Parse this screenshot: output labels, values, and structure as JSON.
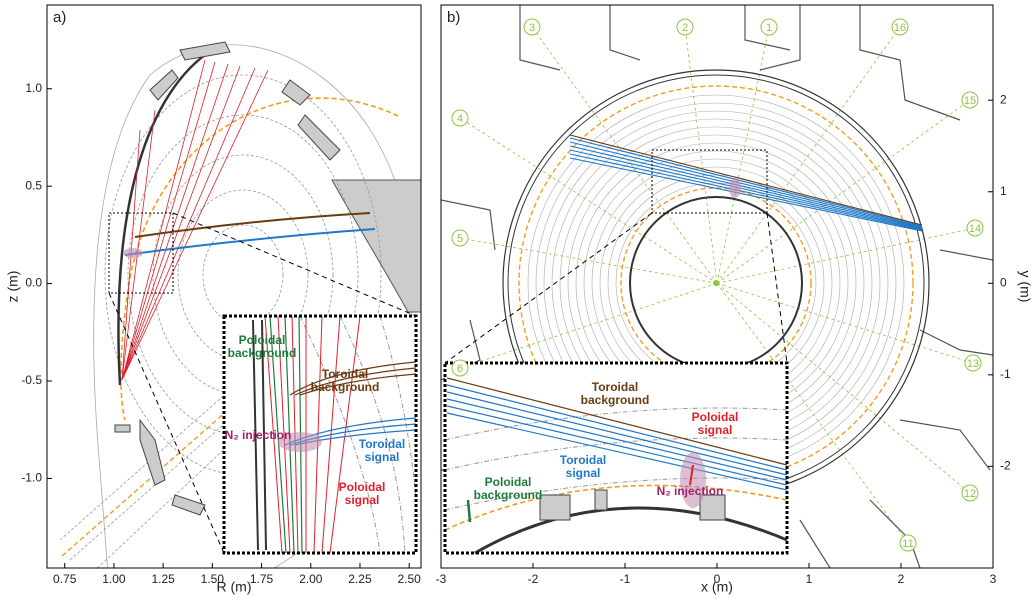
{
  "chart_data": [
    {
      "type": "line",
      "panel_label": "a)",
      "xlabel": "R (m)",
      "ylabel": "z (m)",
      "xlim": [
        0.66,
        2.56
      ],
      "ylim": [
        -1.46,
        1.43
      ],
      "xticks": [
        {
          "value": 0.75,
          "label": "0.75"
        },
        {
          "value": 1.0,
          "label": "1.00"
        },
        {
          "value": 1.25,
          "label": "1.25"
        },
        {
          "value": 1.5,
          "label": "1.50"
        },
        {
          "value": 1.75,
          "label": "1.75"
        },
        {
          "value": 2.0,
          "label": "2.00"
        },
        {
          "value": 2.25,
          "label": "2.25"
        },
        {
          "value": 2.5,
          "label": "2.50"
        }
      ],
      "yticks": [
        {
          "value": 1.0,
          "label": "1.0"
        },
        {
          "value": 0.5,
          "label": "0.5"
        },
        {
          "value": 0.0,
          "label": "0.0"
        },
        {
          "value": -0.5,
          "label": "-0.5"
        },
        {
          "value": -1.0,
          "label": "-1.0"
        }
      ],
      "annotations": [
        {
          "text": "Poloidal background",
          "color": "#1e7b3c"
        },
        {
          "text": "Toroidal background",
          "color": "#6b3a10"
        },
        {
          "text": "N₂ injection",
          "color": "#a0206a"
        },
        {
          "text": "Toroidal signal",
          "color": "#1f78c8"
        },
        {
          "text": "Poloidal signal",
          "color": "#e0202a"
        }
      ]
    },
    {
      "type": "line",
      "panel_label": "b)",
      "xlabel": "x (m)",
      "ylabel": "y (m)",
      "xlim": [
        -3,
        3
      ],
      "ylim": [
        -3.11,
        3.04
      ],
      "xticks": [
        -3,
        -2,
        -1,
        0,
        1,
        2,
        3
      ],
      "yticks": [
        -2,
        -1,
        0,
        1,
        2
      ],
      "port_labels": [
        "1",
        "2",
        "3",
        "4",
        "5",
        "6",
        "11",
        "12",
        "13",
        "14",
        "15",
        "16"
      ],
      "port_color": "#8cc63f",
      "annotations": [
        {
          "text": "Toroidal background",
          "color": "#6b3a10"
        },
        {
          "text": "Poloidal signal",
          "color": "#e0202a"
        },
        {
          "text": "Toroidal signal",
          "color": "#1f78c8"
        },
        {
          "text": "Poloidal background",
          "color": "#1e7b3c"
        },
        {
          "text": "N₂ injection",
          "color": "#a0206a"
        }
      ]
    }
  ]
}
